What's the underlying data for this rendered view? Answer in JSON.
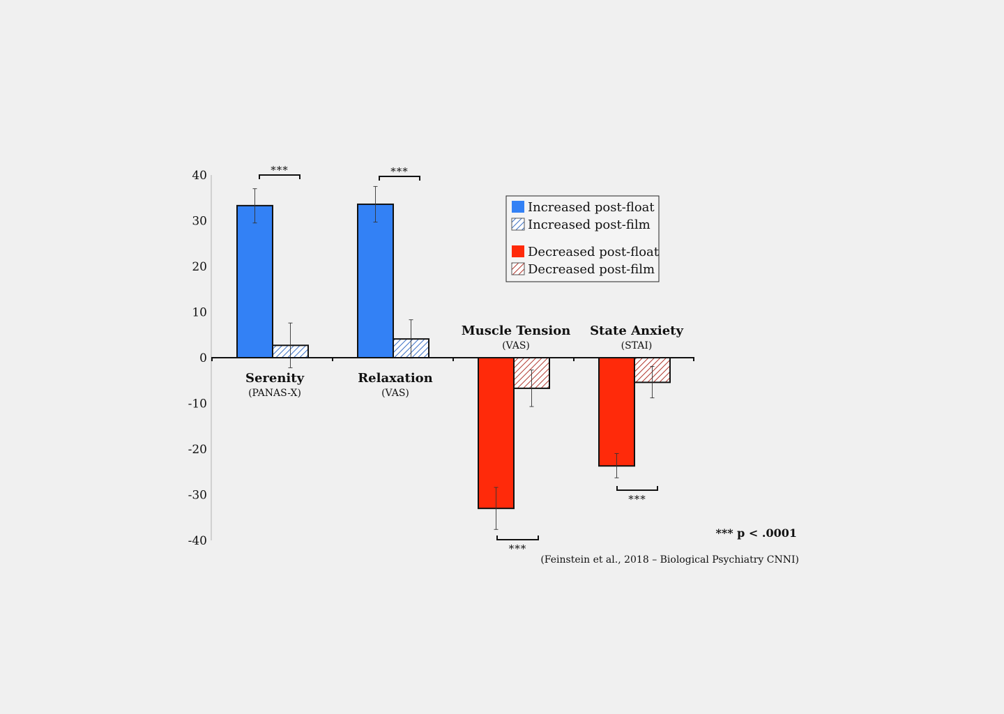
{
  "colors": {
    "background": "#f0f0f0",
    "float_blue": "#3381f5",
    "film_blue_hatch": "#3a6fc4",
    "float_red": "#ff2a0a",
    "film_red_hatch": "#b0352c",
    "axis": "#111111",
    "gridline_y_axis": "#bbbbbb"
  },
  "chart_data": {
    "type": "bar",
    "ylim": [
      -40,
      40
    ],
    "yticks": [
      40,
      30,
      20,
      10,
      0,
      -10,
      -20,
      -30,
      -40
    ],
    "grid": false,
    "legend_position": "top-right",
    "categories": [
      {
        "name": "Serenity",
        "sub": "(PANAS-X)",
        "label_position": "below"
      },
      {
        "name": "Relaxation",
        "sub": "(VAS)",
        "label_position": "below"
      },
      {
        "name": "Muscle Tension",
        "sub": "(VAS)",
        "label_position": "above"
      },
      {
        "name": "State Anxiety",
        "sub": "(STAI)",
        "label_position": "above"
      }
    ],
    "bars": [
      {
        "category": 0,
        "kind": "float",
        "dir": "increased",
        "value": 33.3,
        "err_low": 29.5,
        "err_high": 37.0
      },
      {
        "category": 0,
        "kind": "film",
        "dir": "increased",
        "value": 2.7,
        "err_low": -2.2,
        "err_high": 7.6
      },
      {
        "category": 1,
        "kind": "float",
        "dir": "increased",
        "value": 33.6,
        "err_low": 29.7,
        "err_high": 37.5
      },
      {
        "category": 1,
        "kind": "film",
        "dir": "increased",
        "value": 4.1,
        "err_low": -0.1,
        "err_high": 8.3
      },
      {
        "category": 2,
        "kind": "float",
        "dir": "decreased",
        "value": -33.0,
        "err_low": -37.6,
        "err_high": -28.4
      },
      {
        "category": 2,
        "kind": "film",
        "dir": "decreased",
        "value": -6.7,
        "err_low": -10.7,
        "err_high": -2.7
      },
      {
        "category": 3,
        "kind": "float",
        "dir": "decreased",
        "value": -23.7,
        "err_low": -26.3,
        "err_high": -21.0
      },
      {
        "category": 3,
        "kind": "film",
        "dir": "decreased",
        "value": -5.4,
        "err_low": -8.8,
        "err_high": -1.9
      }
    ],
    "significance": [
      {
        "category": 0,
        "position": "above",
        "label": "***"
      },
      {
        "category": 1,
        "position": "above",
        "label": "***"
      },
      {
        "category": 2,
        "position": "below",
        "label": "***"
      },
      {
        "category": 3,
        "position": "below",
        "label": "***"
      }
    ],
    "legend": [
      {
        "label": "Increased post-float",
        "dir": "increased",
        "kind": "float"
      },
      {
        "label": "Increased post-film",
        "dir": "increased",
        "kind": "film"
      },
      {
        "label": "Decreased post-float",
        "dir": "decreased",
        "kind": "float"
      },
      {
        "label": "Decreased post-film",
        "dir": "decreased",
        "kind": "film"
      }
    ],
    "annotations": {
      "pvalue": "*** p < .0001",
      "citation": "(Feinstein et al., 2018 – Biological Psychiatry CNNI)"
    }
  }
}
